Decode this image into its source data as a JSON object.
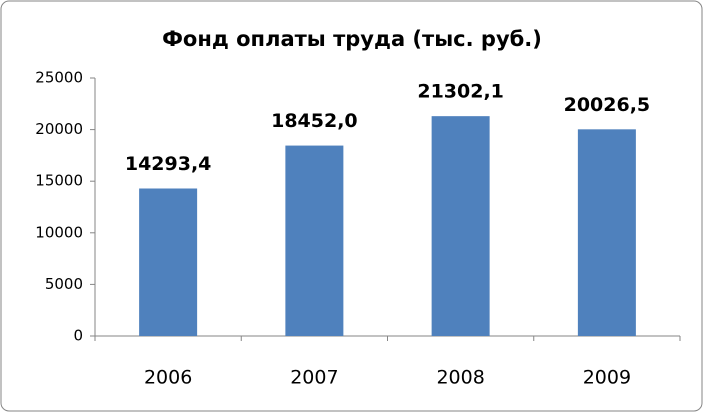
{
  "chart_data": {
    "type": "bar",
    "title": "Фонд оплаты труда (тыс. руб.)",
    "categories": [
      "2006",
      "2007",
      "2008",
      "2009"
    ],
    "values": [
      14293.4,
      18452.0,
      21302.1,
      20026.5
    ],
    "value_labels": [
      "14293,4",
      "18452,0",
      "21302,1",
      "20026,5"
    ],
    "color": "#4f81bd",
    "ylim": [
      0,
      25000
    ],
    "yticks": [
      0,
      5000,
      10000,
      15000,
      20000,
      25000
    ],
    "grid": false
  }
}
